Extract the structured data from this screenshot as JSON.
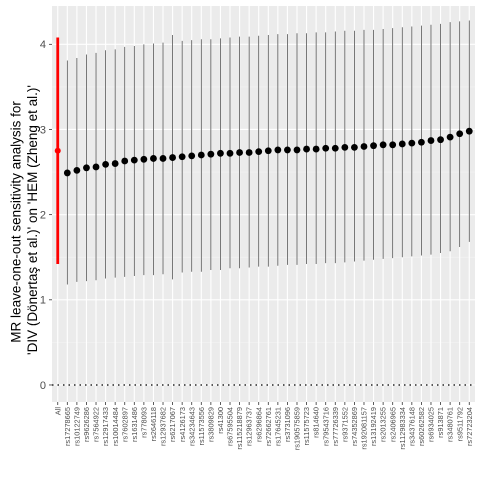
{
  "chart_data": {
    "type": "scatter",
    "ylabel_lines": [
      "MR leave-one-out sensitivity analysis for",
      "'DIV (Dönertaş et al.)' on 'HEM (Zheng et al.)'"
    ],
    "ylim": [
      -0.2,
      4.45
    ],
    "yticks": [
      0,
      1,
      2,
      3,
      4
    ],
    "reference_line_y": 0,
    "grid": true,
    "highlight_color": "#ff0000",
    "point_color": "#000000",
    "categories": [
      "All",
      "rs17278665",
      "rs10122749",
      "rs9626286",
      "rs7564922",
      "rs12917433",
      "rs10014484",
      "rs7602897",
      "rs1631486",
      "rs778093",
      "rs2646118",
      "rs12937682",
      "rs6217067",
      "rs4126173",
      "rs34234643",
      "rs11573556",
      "rs3809829",
      "rs41300",
      "rs67595504",
      "rs115218879",
      "rs12963737",
      "rs6296864",
      "rs72662761",
      "rs17645231",
      "rs3731096",
      "rs190575859",
      "rs11575723",
      "rs814640",
      "rs79543716",
      "rs77726339",
      "rs9371552",
      "rs74352869",
      "rs192081157",
      "rs13192419",
      "rs2013255",
      "rs2406965",
      "rs112983334",
      "rs34376148",
      "rs60262582",
      "rs6934025",
      "rs913871",
      "rs3480761",
      "rs9511792",
      "rs72723204"
    ],
    "estimates": [
      2.75,
      2.49,
      2.52,
      2.55,
      2.56,
      2.59,
      2.6,
      2.63,
      2.64,
      2.65,
      2.66,
      2.66,
      2.67,
      2.68,
      2.69,
      2.7,
      2.71,
      2.72,
      2.72,
      2.73,
      2.73,
      2.74,
      2.75,
      2.76,
      2.76,
      2.76,
      2.77,
      2.77,
      2.78,
      2.78,
      2.79,
      2.79,
      2.8,
      2.81,
      2.82,
      2.82,
      2.83,
      2.84,
      2.85,
      2.87,
      2.88,
      2.91,
      2.95,
      2.98
    ],
    "lower": [
      1.42,
      1.18,
      1.21,
      1.22,
      1.23,
      1.25,
      1.26,
      1.27,
      1.28,
      1.29,
      1.29,
      1.3,
      1.24,
      1.32,
      1.33,
      1.33,
      1.35,
      1.35,
      1.37,
      1.37,
      1.38,
      1.39,
      1.39,
      1.4,
      1.41,
      1.41,
      1.42,
      1.42,
      1.43,
      1.43,
      1.44,
      1.45,
      1.46,
      1.47,
      1.48,
      1.49,
      1.5,
      1.51,
      1.52,
      1.53,
      1.55,
      1.57,
      1.62,
      1.68
    ],
    "upper": [
      4.08,
      3.81,
      3.84,
      3.88,
      3.9,
      3.93,
      3.94,
      3.97,
      3.98,
      4.0,
      4.01,
      4.02,
      4.11,
      4.04,
      4.05,
      4.06,
      4.06,
      4.07,
      4.08,
      4.09,
      4.09,
      4.1,
      4.11,
      4.12,
      4.12,
      4.13,
      4.13,
      4.14,
      4.14,
      4.15,
      4.16,
      4.16,
      4.17,
      4.17,
      4.18,
      4.19,
      4.2,
      4.21,
      4.22,
      4.23,
      4.24,
      4.26,
      4.27,
      4.28
    ]
  }
}
